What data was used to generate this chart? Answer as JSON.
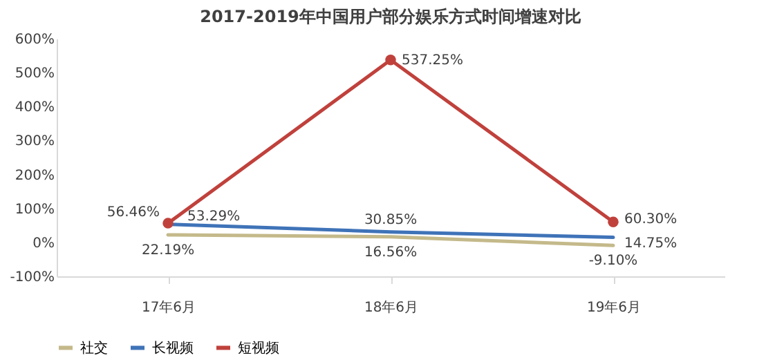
{
  "chart_data": {
    "type": "line",
    "title": "2017-2019年中国用户部分娱乐方式时间增速对比",
    "categories": [
      "17年6月",
      "18年6月",
      "19年6月"
    ],
    "series": [
      {
        "name": "社交",
        "color": "#c4b98a",
        "values": [
          22.19,
          16.56,
          -9.1
        ],
        "value_labels": [
          "22.19%",
          "16.56%",
          "-9.10%"
        ],
        "marker": "none"
      },
      {
        "name": "长视频",
        "color": "#3f73b8",
        "values": [
          53.29,
          30.85,
          14.75
        ],
        "value_labels": [
          "53.29%",
          "30.85%",
          "14.75%"
        ],
        "marker": "none"
      },
      {
        "name": "短视频",
        "color": "#c0413c",
        "values": [
          56.46,
          537.25,
          60.3
        ],
        "value_labels": [
          "56.46%",
          "537.25%",
          "60.30%"
        ],
        "marker": "circle"
      }
    ],
    "ylim": [
      -100,
      600
    ],
    "yticks": [
      {
        "value": -100,
        "label": "-100%"
      },
      {
        "value": 0,
        "label": "0%"
      },
      {
        "value": 100,
        "label": "100%"
      },
      {
        "value": 200,
        "label": "200%"
      },
      {
        "value": 300,
        "label": "300%"
      },
      {
        "value": 400,
        "label": "400%"
      },
      {
        "value": 500,
        "label": "500%"
      },
      {
        "value": 600,
        "label": "600%"
      }
    ],
    "grid": false,
    "legend": "bottom",
    "line_style": "solid"
  }
}
